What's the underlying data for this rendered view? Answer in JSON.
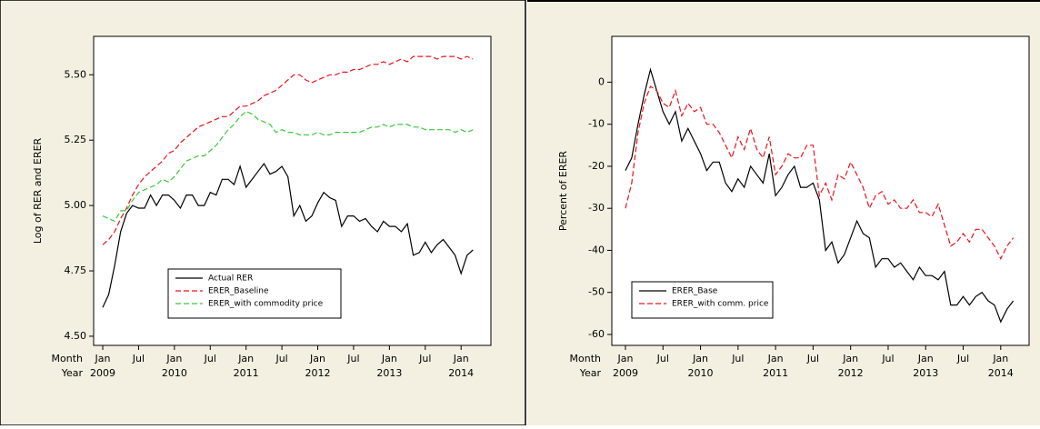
{
  "chart_data": [
    {
      "type": "line",
      "ylabel": "Log of RER and ERER",
      "month_label": "Month",
      "year_label": "Year",
      "categories": [
        "Jan",
        null,
        null,
        null,
        null,
        null,
        "Jul",
        null,
        null,
        null,
        null,
        null,
        "Jan",
        null,
        null,
        null,
        null,
        null,
        "Jul",
        null,
        null,
        null,
        null,
        null,
        "Jan",
        null,
        null,
        null,
        null,
        null,
        "Jul",
        null,
        null,
        null,
        null,
        null,
        "Jan",
        null,
        null,
        null,
        null,
        null,
        "Jul",
        null,
        null,
        null,
        null,
        null,
        "Jan",
        null,
        null,
        null,
        null,
        null,
        "Jul",
        null,
        null,
        null,
        null,
        null,
        "Jan",
        null,
        null
      ],
      "years": [
        "2009",
        null,
        null,
        null,
        null,
        null,
        null,
        null,
        null,
        null,
        null,
        null,
        "2010",
        null,
        null,
        null,
        null,
        null,
        null,
        null,
        null,
        null,
        null,
        null,
        "2011",
        null,
        null,
        null,
        null,
        null,
        null,
        null,
        null,
        null,
        null,
        null,
        "2012",
        null,
        null,
        null,
        null,
        null,
        null,
        null,
        null,
        null,
        null,
        null,
        "2013",
        null,
        null,
        null,
        null,
        null,
        null,
        null,
        null,
        null,
        null,
        null,
        "2014",
        null,
        null
      ],
      "ylim": [
        4.465,
        5.647
      ],
      "yticks": [
        {
          "value": 4.5,
          "label": "4.50"
        },
        {
          "value": 4.75,
          "label": "4.75"
        },
        {
          "value": 5,
          "label": "5.00"
        },
        {
          "value": 5.25,
          "label": "5.25"
        },
        {
          "value": 5.5,
          "label": "5.50"
        }
      ],
      "legend_position": "lower left",
      "series": [
        {
          "name": "Actual RER",
          "color": "#000000",
          "dash": "solid",
          "values": [
            4.61,
            4.66,
            4.77,
            4.9,
            4.97,
            5.0,
            4.99,
            4.99,
            5.04,
            5.0,
            5.04,
            5.04,
            5.02,
            4.99,
            5.04,
            5.04,
            5.0,
            5.0,
            5.05,
            5.04,
            5.1,
            5.1,
            5.08,
            5.15,
            5.07,
            5.1,
            5.13,
            5.16,
            5.12,
            5.13,
            5.15,
            5.11,
            4.96,
            5.0,
            4.94,
            4.96,
            5.01,
            5.05,
            5.03,
            5.02,
            4.92,
            4.96,
            4.96,
            4.94,
            4.95,
            4.92,
            4.9,
            4.94,
            4.92,
            4.92,
            4.9,
            4.93,
            4.81,
            4.82,
            4.86,
            4.82,
            4.85,
            4.87,
            4.84,
            4.81,
            4.74,
            4.81,
            4.83
          ]
        },
        {
          "name": "ERER_Baseline",
          "color": "#e8141c",
          "dash": "dashed",
          "values": [
            4.85,
            4.87,
            4.9,
            4.95,
            4.99,
            5.04,
            5.08,
            5.11,
            5.13,
            5.15,
            5.17,
            5.2,
            5.21,
            5.24,
            5.26,
            5.28,
            5.3,
            5.31,
            5.32,
            5.33,
            5.34,
            5.34,
            5.36,
            5.38,
            5.38,
            5.39,
            5.4,
            5.42,
            5.43,
            5.44,
            5.46,
            5.48,
            5.5,
            5.5,
            5.48,
            5.47,
            5.48,
            5.49,
            5.5,
            5.5,
            5.51,
            5.51,
            5.52,
            5.52,
            5.53,
            5.54,
            5.54,
            5.55,
            5.54,
            5.55,
            5.56,
            5.55,
            5.57,
            5.57,
            5.57,
            5.57,
            5.56,
            5.57,
            5.57,
            5.57,
            5.56,
            5.57,
            5.56
          ]
        },
        {
          "name": "ERER_with commodity price",
          "color": "#3cc83c",
          "dash": "dashed",
          "values": [
            4.96,
            4.95,
            4.94,
            4.98,
            4.98,
            5.02,
            5.05,
            5.06,
            5.07,
            5.08,
            5.1,
            5.09,
            5.11,
            5.14,
            5.17,
            5.18,
            5.19,
            5.19,
            5.21,
            5.23,
            5.26,
            5.29,
            5.31,
            5.34,
            5.36,
            5.35,
            5.33,
            5.32,
            5.31,
            5.28,
            5.29,
            5.28,
            5.28,
            5.27,
            5.27,
            5.27,
            5.28,
            5.27,
            5.27,
            5.28,
            5.28,
            5.28,
            5.28,
            5.28,
            5.29,
            5.3,
            5.3,
            5.31,
            5.3,
            5.31,
            5.31,
            5.31,
            5.3,
            5.3,
            5.29,
            5.29,
            5.29,
            5.29,
            5.29,
            5.28,
            5.29,
            5.28,
            5.29
          ]
        }
      ]
    },
    {
      "type": "line",
      "ylabel": "Percent of ERER",
      "month_label": "Month",
      "year_label": "Year",
      "categories": [
        "Jan",
        null,
        null,
        null,
        null,
        null,
        "Jul",
        null,
        null,
        null,
        null,
        null,
        "Jan",
        null,
        null,
        null,
        null,
        null,
        "Jul",
        null,
        null,
        null,
        null,
        null,
        "Jan",
        null,
        null,
        null,
        null,
        null,
        "Jul",
        null,
        null,
        null,
        null,
        null,
        "Jan",
        null,
        null,
        null,
        null,
        null,
        "Jul",
        null,
        null,
        null,
        null,
        null,
        "Jan",
        null,
        null,
        null,
        null,
        null,
        "Jul",
        null,
        null,
        null,
        null,
        null,
        "Jan",
        null,
        null
      ],
      "years": [
        "2009",
        null,
        null,
        null,
        null,
        null,
        null,
        null,
        null,
        null,
        null,
        null,
        "2010",
        null,
        null,
        null,
        null,
        null,
        null,
        null,
        null,
        null,
        null,
        null,
        "2011",
        null,
        null,
        null,
        null,
        null,
        null,
        null,
        null,
        null,
        null,
        null,
        "2012",
        null,
        null,
        null,
        null,
        null,
        null,
        null,
        null,
        null,
        null,
        null,
        "2013",
        null,
        null,
        null,
        null,
        null,
        null,
        null,
        null,
        null,
        null,
        null,
        "2014",
        null,
        null
      ],
      "ylim": [
        -62.6,
        10.9
      ],
      "yticks": [
        0,
        -10,
        -20,
        -30,
        -40,
        -50,
        -60
      ],
      "legend_position": "lower left",
      "series": [
        {
          "name": "ERER_Base",
          "color": "#000000",
          "dash": "solid",
          "values": [
            -21,
            -18,
            -10,
            -3,
            3,
            -2,
            -7,
            -10,
            -7,
            -14,
            -11,
            -14,
            -17,
            -21,
            -19,
            -19,
            -24,
            -26,
            -23,
            -25,
            -20,
            -22,
            -24,
            -17,
            -27,
            -25,
            -22,
            -20,
            -25,
            -25,
            -24,
            -28,
            -40,
            -38,
            -43,
            -41,
            -37,
            -33,
            -36,
            -37,
            -44,
            -42,
            -42,
            -44,
            -43,
            -45,
            -47,
            -44,
            -46,
            -46,
            -47,
            -45,
            -53,
            -53,
            -51,
            -53,
            -51,
            -50,
            -52,
            -53,
            -57,
            -54,
            -52
          ]
        },
        {
          "name": "ERER_with comm. price",
          "color": "#e8141c",
          "dash": "dashed",
          "values": [
            -30,
            -24,
            -12,
            -5,
            -1,
            -2,
            -5,
            -6,
            -2,
            -8,
            -5,
            -7,
            -6,
            -10,
            -10,
            -12,
            -15,
            -18,
            -13,
            -16,
            -11,
            -16,
            -18,
            -13,
            -22,
            -20,
            -17,
            -18,
            -18,
            -15,
            -15,
            -27,
            -24,
            -28,
            -22,
            -23,
            -19,
            -22,
            -25,
            -30,
            -27,
            -26,
            -29,
            -28,
            -30,
            -30,
            -28,
            -31,
            -31,
            -32,
            -29,
            -34,
            -39,
            -38,
            -36,
            -38,
            -35,
            -35,
            -37,
            -39,
            -42,
            -39,
            -37
          ]
        }
      ]
    }
  ]
}
